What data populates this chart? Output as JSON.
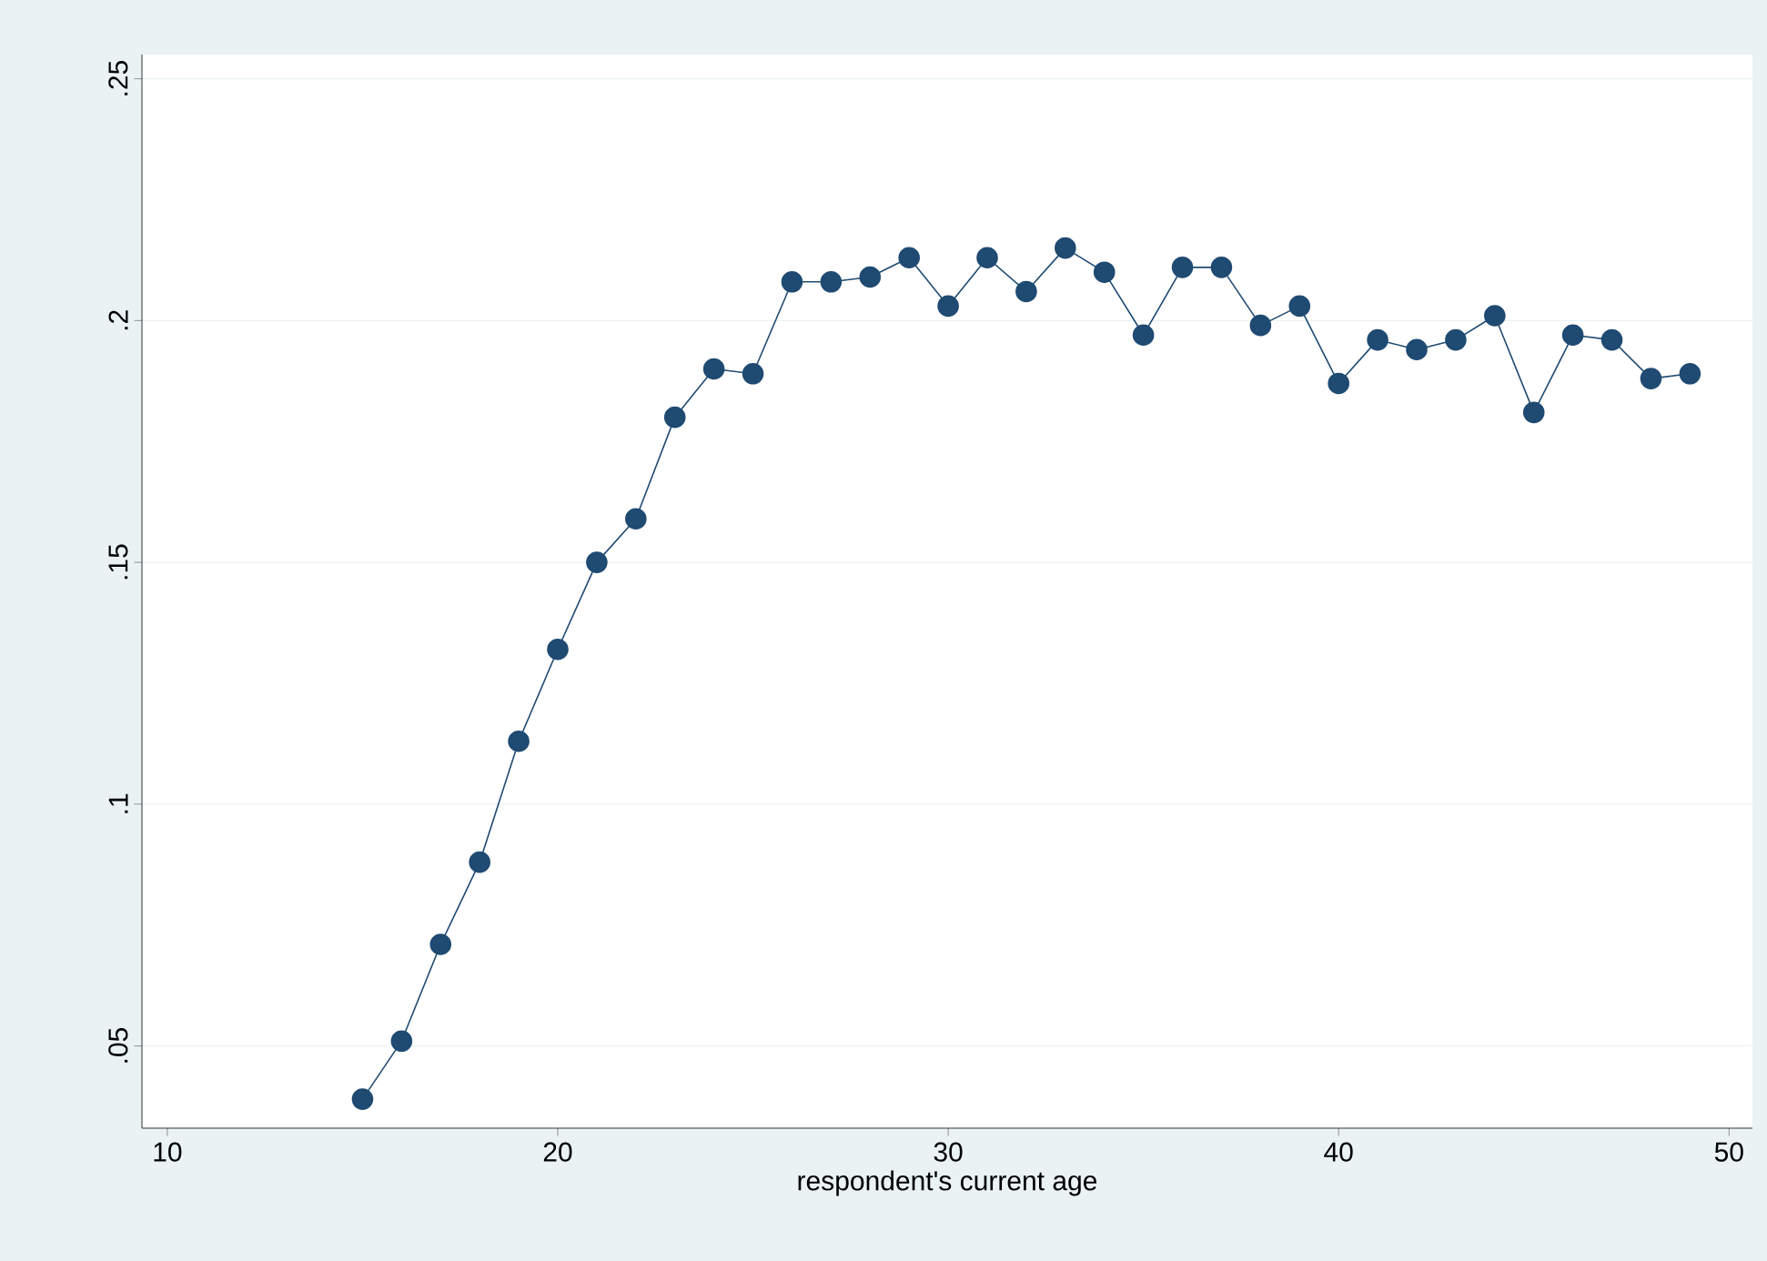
{
  "chart_data": {
    "type": "line",
    "xlabel": "respondent's current age",
    "x": [
      15,
      16,
      17,
      18,
      19,
      20,
      21,
      22,
      23,
      24,
      25,
      26,
      27,
      28,
      29,
      30,
      31,
      32,
      33,
      34,
      35,
      36,
      37,
      38,
      39,
      40,
      41,
      42,
      43,
      44,
      45,
      46,
      47,
      48,
      49
    ],
    "series": [
      {
        "color": "#1f4a72",
        "values": [
          0.039,
          0.051,
          0.071,
          0.088,
          0.113,
          0.132,
          0.15,
          0.159,
          0.18,
          0.19,
          0.189,
          0.208,
          0.208,
          0.209,
          0.213,
          0.203,
          0.213,
          0.206,
          0.215,
          0.21,
          0.197,
          0.211,
          0.211,
          0.199,
          0.203,
          0.187,
          0.196,
          0.194,
          0.196,
          0.201,
          0.181,
          0.197,
          0.196,
          0.188,
          0.189
        ]
      }
    ],
    "xlim": [
      9.35,
      50.6
    ],
    "ylim": [
      0.033,
      0.255
    ],
    "xticks": [
      10,
      20,
      30,
      40,
      50
    ],
    "yticks": [
      {
        "value": 0.05,
        "label": ".05"
      },
      {
        "value": 0.1,
        "label": ".1"
      },
      {
        "value": 0.15,
        "label": ".15"
      },
      {
        "value": 0.2,
        "label": ".2"
      },
      {
        "value": 0.25,
        "label": ".25"
      }
    ],
    "grid": "y",
    "marker": "circle",
    "line_style": "solid"
  }
}
